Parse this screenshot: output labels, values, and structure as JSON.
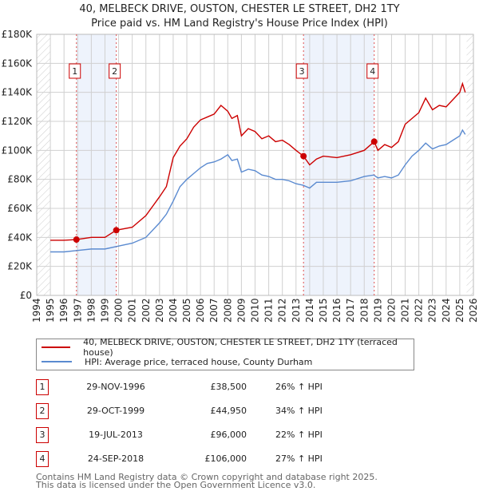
{
  "title": "40, MELBECK DRIVE, OUSTON, CHESTER LE STREET, DH2 1TY",
  "subtitle": "Price paid vs. HM Land Registry's House Price Index (HPI)",
  "chart_data": {
    "type": "line",
    "title": "40, MELBECK DRIVE, OUSTON, CHESTER LE STREET, DH2 1TY",
    "ylim": [
      0,
      180000
    ],
    "xlim": [
      1994,
      2026
    ],
    "yticks": [
      {
        "v": 0,
        "label": "£0"
      },
      {
        "v": 20000,
        "label": "£20K"
      },
      {
        "v": 40000,
        "label": "£40K"
      },
      {
        "v": 60000,
        "label": "£60K"
      },
      {
        "v": 80000,
        "label": "£80K"
      },
      {
        "v": 100000,
        "label": "£100K"
      },
      {
        "v": 120000,
        "label": "£120K"
      },
      {
        "v": 140000,
        "label": "£140K"
      },
      {
        "v": 160000,
        "label": "£160K"
      },
      {
        "v": 180000,
        "label": "£180K"
      }
    ],
    "xticks": [
      "1994",
      "1995",
      "1996",
      "1997",
      "1998",
      "1999",
      "2000",
      "2001",
      "2002",
      "2003",
      "2004",
      "2005",
      "2006",
      "2007",
      "2008",
      "2009",
      "2010",
      "2011",
      "2012",
      "2013",
      "2014",
      "2015",
      "2016",
      "2017",
      "2018",
      "2019",
      "2020",
      "2021",
      "2022",
      "2023",
      "2024",
      "2025",
      "2026"
    ],
    "shaded": [
      [
        1996.91,
        1999.83
      ],
      [
        2013.55,
        2018.73
      ]
    ],
    "series": [
      {
        "name": "40, MELBECK DRIVE, OUSTON, CHESTER LE STREET, DH2 1TY (terraced house)",
        "color": "#cc0000",
        "x": [
          1995,
          1996,
          1996.91,
          1998,
          1999,
          1999.83,
          2001,
          2002,
          2003,
          2003.5,
          2004,
          2004.5,
          2005,
          2005.5,
          2006,
          2006.5,
          2007,
          2007.5,
          2008,
          2008.3,
          2008.7,
          2009,
          2009.5,
          2010,
          2010.5,
          2011,
          2011.5,
          2012,
          2012.5,
          2013,
          2013.55,
          2014,
          2014.5,
          2015,
          2016,
          2017,
          2018,
          2018.73,
          2019,
          2019.5,
          2020,
          2020.5,
          2021,
          2021.5,
          2022,
          2022.5,
          2023,
          2023.5,
          2024,
          2024.5,
          2025,
          2025.2,
          2025.4
        ],
        "y": [
          38000,
          38000,
          38500,
          40000,
          40000,
          44950,
          47000,
          55000,
          68000,
          75000,
          95000,
          103000,
          108000,
          116000,
          121000,
          123000,
          125000,
          131000,
          127000,
          122000,
          124000,
          110000,
          115000,
          113000,
          108000,
          110000,
          106000,
          107000,
          104000,
          100000,
          96000,
          90000,
          94000,
          96000,
          95000,
          97000,
          100000,
          106000,
          100000,
          104000,
          102000,
          106000,
          118000,
          122000,
          126000,
          136000,
          128000,
          131000,
          130000,
          135000,
          140000,
          146000,
          140000
        ]
      },
      {
        "name": "HPI: Average price, terraced house, County Durham",
        "color": "#5a8ad0",
        "x": [
          1995,
          1996,
          1997,
          1998,
          1999,
          2000,
          2001,
          2002,
          2003,
          2003.5,
          2004,
          2004.5,
          2005,
          2005.5,
          2006,
          2006.5,
          2007,
          2007.5,
          2008,
          2008.3,
          2008.7,
          2009,
          2009.5,
          2010,
          2010.5,
          2011,
          2011.5,
          2012,
          2012.5,
          2013,
          2013.5,
          2014,
          2014.5,
          2015,
          2016,
          2017,
          2018,
          2018.7,
          2019,
          2019.5,
          2020,
          2020.5,
          2021,
          2021.5,
          2022,
          2022.5,
          2023,
          2023.5,
          2024,
          2024.5,
          2025,
          2025.2,
          2025.4
        ],
        "y": [
          30000,
          30000,
          31000,
          32000,
          32000,
          34000,
          36000,
          40000,
          50000,
          56000,
          65000,
          75000,
          80000,
          84000,
          88000,
          91000,
          92000,
          94000,
          97000,
          93000,
          94000,
          85000,
          87000,
          86000,
          83000,
          82000,
          80000,
          80000,
          79000,
          77000,
          76000,
          74000,
          78000,
          78000,
          78000,
          79000,
          82000,
          83000,
          81000,
          82000,
          81000,
          83000,
          90000,
          96000,
          100000,
          105000,
          101000,
          103000,
          104000,
          107000,
          110000,
          114000,
          111000
        ]
      }
    ],
    "sales": [
      {
        "label": "1",
        "x": 1996.91,
        "y": 38500
      },
      {
        "label": "2",
        "x": 1999.83,
        "y": 44950
      },
      {
        "label": "3",
        "x": 2013.55,
        "y": 96000
      },
      {
        "label": "4",
        "x": 2018.73,
        "y": 106000
      }
    ]
  },
  "legend": {
    "property": "40, MELBECK DRIVE, OUSTON, CHESTER LE STREET, DH2 1TY (terraced house)",
    "hpi": "HPI: Average price, terraced house, County Durham"
  },
  "transactions": [
    {
      "num": "1",
      "date": "29-NOV-1996",
      "price": "£38,500",
      "hpi": "26% ↑ HPI"
    },
    {
      "num": "2",
      "date": "29-OCT-1999",
      "price": "£44,950",
      "hpi": "34% ↑ HPI"
    },
    {
      "num": "3",
      "date": "19-JUL-2013",
      "price": "£96,000",
      "hpi": "22% ↑ HPI"
    },
    {
      "num": "4",
      "date": "24-SEP-2018",
      "price": "£106,000",
      "hpi": "27% ↑ HPI"
    }
  ],
  "footer": {
    "line1": "Contains HM Land Registry data © Crown copyright and database right 2025.",
    "line2": "This data is licensed under the Open Government Licence v3.0."
  }
}
